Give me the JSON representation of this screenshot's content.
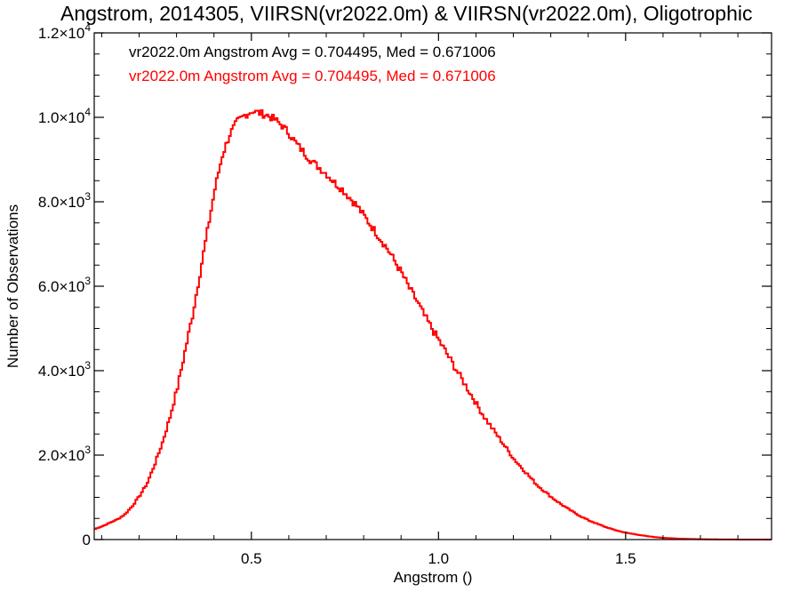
{
  "chart_data": {
    "type": "line",
    "title": "Angstrom, 2014305, VIIRSN(vr2022.0m) & VIIRSN(vr2022.0m), Oligotrophic",
    "xlabel": "Angstrom ()",
    "ylabel": "Number of Observations",
    "xlim": [
      0.08,
      1.89
    ],
    "ylim": [
      0,
      12000
    ],
    "x_ticks": [
      {
        "value": 0.5,
        "label": "0.5"
      },
      {
        "value": 1.0,
        "label": "1.0"
      },
      {
        "value": 1.5,
        "label": "1.5"
      }
    ],
    "y_ticks": [
      {
        "value": 0,
        "mant": "0",
        "exp": ""
      },
      {
        "value": 2000,
        "mant": "2.0×10",
        "exp": "3"
      },
      {
        "value": 4000,
        "mant": "4.0×10",
        "exp": "3"
      },
      {
        "value": 6000,
        "mant": "6.0×10",
        "exp": "3"
      },
      {
        "value": 8000,
        "mant": "8.0×10",
        "exp": "3"
      },
      {
        "value": 10000,
        "mant": "1.0×10",
        "exp": "4"
      },
      {
        "value": 12000,
        "mant": "1.2×10",
        "exp": "4"
      }
    ],
    "annotations": [
      {
        "text": "vr2022.0m Angstrom Avg = 0.704495, Med = 0.671006",
        "color": "#000000"
      },
      {
        "text": "vr2022.0m Angstrom Avg = 0.704495, Med = 0.671006",
        "color": "#ff0000"
      }
    ],
    "step_width": 0.005,
    "series": [
      {
        "color": "#ff0000",
        "x": [
          0.08,
          0.1,
          0.12,
          0.14,
          0.16,
          0.18,
          0.2,
          0.22,
          0.24,
          0.26,
          0.28,
          0.3,
          0.32,
          0.34,
          0.36,
          0.38,
          0.4,
          0.42,
          0.44,
          0.46,
          0.48,
          0.5,
          0.52,
          0.54,
          0.56,
          0.58,
          0.6,
          0.62,
          0.64,
          0.66,
          0.68,
          0.7,
          0.72,
          0.74,
          0.76,
          0.78,
          0.8,
          0.82,
          0.84,
          0.86,
          0.88,
          0.9,
          0.92,
          0.94,
          0.96,
          0.98,
          1.0,
          1.02,
          1.04,
          1.06,
          1.08,
          1.1,
          1.12,
          1.14,
          1.16,
          1.18,
          1.2,
          1.22,
          1.24,
          1.26,
          1.28,
          1.3,
          1.32,
          1.34,
          1.36,
          1.38,
          1.4,
          1.42,
          1.44,
          1.46,
          1.48,
          1.5,
          1.52,
          1.54,
          1.56,
          1.58,
          1.6,
          1.62,
          1.64,
          1.66,
          1.68,
          1.7,
          1.72,
          1.74,
          1.76,
          1.78,
          1.8,
          1.82,
          1.84,
          1.86,
          1.89
        ],
        "y": [
          250,
          320,
          400,
          480,
          600,
          800,
          1050,
          1350,
          1800,
          2300,
          2900,
          3600,
          4450,
          5300,
          6300,
          7300,
          8300,
          9100,
          9600,
          9900,
          10050,
          10150,
          10100,
          10050,
          9950,
          9800,
          9600,
          9350,
          9150,
          8950,
          8800,
          8650,
          8450,
          8300,
          8100,
          7900,
          7650,
          7400,
          7150,
          6900,
          6600,
          6300,
          5950,
          5650,
          5300,
          5000,
          4700,
          4400,
          4100,
          3800,
          3500,
          3200,
          2900,
          2650,
          2400,
          2150,
          1900,
          1700,
          1500,
          1300,
          1150,
          1000,
          870,
          750,
          640,
          540,
          450,
          380,
          310,
          250,
          200,
          160,
          130,
          100,
          75,
          55,
          40,
          30,
          22,
          16,
          12,
          8,
          6,
          4,
          3,
          2,
          1,
          1,
          0,
          0,
          0
        ]
      }
    ]
  }
}
